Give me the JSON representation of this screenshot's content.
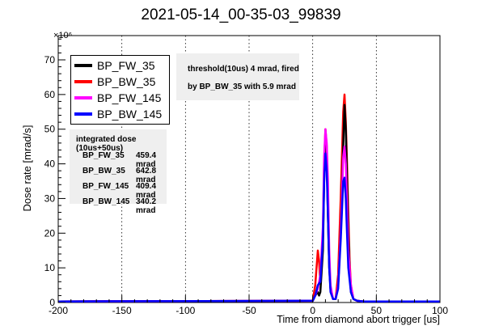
{
  "chart_data": {
    "type": "line",
    "title": "2021-05-14_00-35-03_99839",
    "xlabel": "Time from diamond abort trigger [us]",
    "ylabel": "Dose rate [mrad/s]",
    "y_multiplier_label": "×10⁶",
    "xlim": [
      -200,
      100
    ],
    "ylim": [
      0,
      77
    ],
    "x_ticks": [
      -200,
      -150,
      -100,
      -50,
      0,
      50,
      100
    ],
    "y_ticks": [
      0,
      10,
      20,
      30,
      40,
      50,
      60,
      70
    ],
    "grid": "vertical dotted",
    "legend_position": "top-left",
    "series": [
      {
        "name": "BP_FW_35",
        "color": "#000000",
        "x": [
          -200,
          0,
          2,
          4,
          5,
          6,
          8,
          9,
          10,
          11,
          12,
          13,
          14,
          16,
          18,
          20,
          22,
          24,
          25,
          26,
          27,
          28,
          29,
          30,
          32,
          35,
          40,
          100
        ],
        "y": [
          0.3,
          0.5,
          2,
          3,
          2,
          3,
          15,
          35,
          48,
          42,
          25,
          10,
          4,
          1,
          1,
          5,
          20,
          45,
          57,
          50,
          35,
          20,
          10,
          3,
          1,
          0.5,
          0.3,
          0.3
        ]
      },
      {
        "name": "BP_BW_35",
        "color": "#ff0000",
        "x": [
          -200,
          0,
          2,
          4,
          5,
          6,
          8,
          9,
          10,
          11,
          12,
          13,
          14,
          16,
          18,
          20,
          22,
          24,
          25,
          26,
          27,
          28,
          29,
          30,
          32,
          35,
          40,
          100
        ],
        "y": [
          0.3,
          0.5,
          5,
          15,
          12,
          6,
          20,
          40,
          50,
          45,
          30,
          12,
          4,
          1,
          1,
          8,
          30,
          55,
          60,
          52,
          40,
          25,
          12,
          5,
          1,
          0.5,
          0.3,
          0.3
        ]
      },
      {
        "name": "BP_FW_145",
        "color": "#ff00ff",
        "x": [
          -200,
          0,
          2,
          4,
          6,
          8,
          9,
          10,
          11,
          12,
          13,
          14,
          16,
          18,
          20,
          22,
          24,
          25,
          26,
          27,
          28,
          30,
          32,
          35,
          40,
          100
        ],
        "y": [
          0.3,
          0.5,
          2,
          4,
          8,
          22,
          42,
          50,
          46,
          35,
          15,
          5,
          1,
          1,
          5,
          20,
          42,
          45,
          40,
          28,
          15,
          5,
          1,
          0.5,
          0.3,
          0.3
        ]
      },
      {
        "name": "BP_BW_145",
        "color": "#0000ff",
        "x": [
          -200,
          0,
          2,
          4,
          6,
          8,
          9,
          10,
          11,
          12,
          13,
          14,
          16,
          18,
          20,
          22,
          24,
          25,
          26,
          27,
          28,
          30,
          32,
          35,
          40,
          100
        ],
        "y": [
          0.3,
          0.5,
          2,
          5,
          6,
          18,
          35,
          43,
          38,
          25,
          10,
          3,
          1,
          1,
          4,
          18,
          35,
          36,
          30,
          20,
          10,
          3,
          1,
          0.5,
          0.3,
          0.3
        ]
      }
    ],
    "annotations": {
      "threshold_line1": "threshold(10us)  4 mrad, fired",
      "threshold_line2": "by BP_BW_35  with  5.9 mrad",
      "integrated_title": "integrated dose (10us+50us)",
      "integrated_rows": [
        {
          "name": "BP_FW_35",
          "value": "459.4 mrad"
        },
        {
          "name": "BP_BW_35",
          "value": "642.8 mrad"
        },
        {
          "name": "BP_FW_145",
          "value": "409.4 mrad"
        },
        {
          "name": "BP_BW_145",
          "value": "340.2 mrad"
        }
      ]
    }
  }
}
